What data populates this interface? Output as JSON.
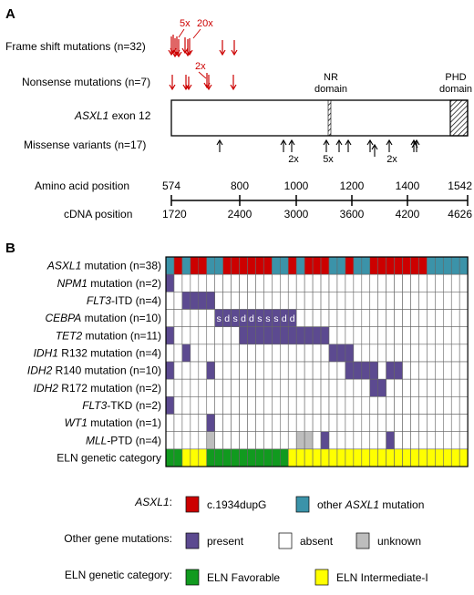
{
  "panel_a": {
    "label": "A",
    "rows": {
      "frameshift": "Frame shift mutations (n=32)",
      "nonsense": "Nonsense mutations (n=7)",
      "exon_gene": "ASXL1",
      "exon_rest": " exon 12",
      "missense": "Missense variants (n=17)",
      "aa": "Amino acid position",
      "cdna": "cDNA position"
    },
    "annotations": {
      "fs_5x": "5x",
      "fs_20x": "20x",
      "ns_2x": "2x",
      "ms_2x_a": "2x",
      "ms_5x": "5x",
      "ms_2x_b": "2x"
    },
    "domains": {
      "nr_1": "NR",
      "nr_2": "domain",
      "phd_1": "PHD",
      "phd_2": "domain"
    },
    "aa_ticks": [
      "574",
      "800",
      "1000",
      "1200",
      "1400",
      "1542"
    ],
    "cdna_ticks": [
      "1720",
      "2400",
      "3000",
      "3600",
      "4200",
      "4626"
    ]
  },
  "panel_b": {
    "label": "B",
    "rows": [
      {
        "gene": "ASXL1",
        "rest": " mutation (n=38)"
      },
      {
        "gene": "NPM1",
        "rest": " mutation (n=2)"
      },
      {
        "gene": "FLT3",
        "rest": "-ITD (n=4)"
      },
      {
        "gene": "CEBPA",
        "rest": " mutation (n=10)"
      },
      {
        "gene": "TET2",
        "rest": " mutation (n=11)"
      },
      {
        "gene": "IDH1",
        "rest": " R132 mutation (n=4)"
      },
      {
        "gene": "IDH2",
        "rest": " R140 mutation (n=10)"
      },
      {
        "gene": "IDH2",
        "rest": " R172 mutation (n=2)"
      },
      {
        "gene": "FLT3",
        "rest": "-TKD (n=2)"
      },
      {
        "gene": "WT1",
        "rest": " mutation (n=1)"
      },
      {
        "gene": "MLL",
        "rest": "-PTD (n=4)"
      },
      {
        "gene": "",
        "rest": "ELN genetic category"
      }
    ],
    "cebpa_marks": [
      "s",
      "d",
      "s",
      "d",
      "d",
      "s",
      "s",
      "s",
      "d",
      "d"
    ],
    "colors": {
      "c1934": "#cc0000",
      "other_asxl1": "#3b93a9",
      "present": "#5c4a90",
      "absent": "#ffffff",
      "unknown": "#bdbdbd",
      "favorable": "#119a1f",
      "intermediate": "#ffff00"
    }
  },
  "legend": {
    "asxl1_gene": "ASXL1",
    "asxl1_colon": ":",
    "c1934": "c.1934dupG",
    "other_prefix": "other ",
    "other_gene": "ASXL1",
    "other_suffix": " mutation",
    "other_genes": "Other gene mutations:",
    "present": "present",
    "absent": "absent",
    "unknown": "unknown",
    "eln": "ELN genetic category:",
    "favorable": "ELN Favorable",
    "intermediate": "ELN Intermediate-I"
  }
}
